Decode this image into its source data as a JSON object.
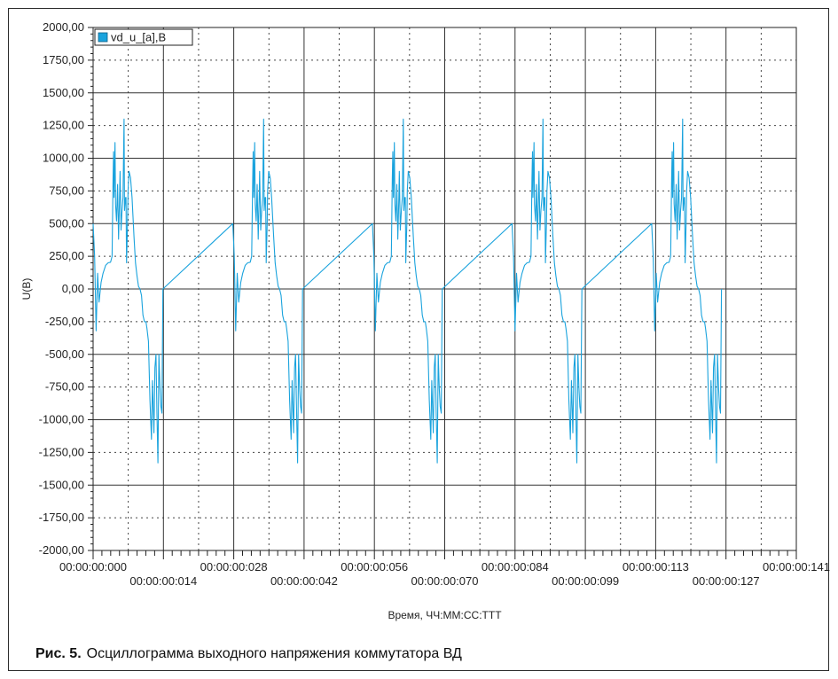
{
  "chart_data": {
    "type": "line",
    "legend": {
      "label": "vd_u_[a],B",
      "position": "top-left"
    },
    "series": [
      {
        "name": "vd_u_[a],B",
        "color": "#1aa3dd",
        "x": [
          0.0,
          0.0003,
          0.0006,
          0.0009,
          0.0012,
          0.0016,
          0.002,
          0.0025,
          0.003,
          0.0035,
          0.0038,
          0.004,
          0.0041,
          0.0042,
          0.0044,
          0.0045,
          0.0047,
          0.0049,
          0.0051,
          0.0053,
          0.0054,
          0.0056,
          0.0058,
          0.006,
          0.0062,
          0.0063,
          0.0065,
          0.0066,
          0.0067,
          0.0069,
          0.007,
          0.0072,
          0.0075,
          0.0078,
          0.0082,
          0.0085,
          0.0088,
          0.0091,
          0.0094,
          0.0097,
          0.01,
          0.0103,
          0.0106,
          0.0108,
          0.0111,
          0.0114,
          0.0117,
          0.0119,
          0.0122,
          0.0124,
          0.0126,
          0.0128,
          0.013,
          0.0132,
          0.0134,
          0.0136,
          0.0138,
          0.014
        ],
        "y": [
          500,
          250,
          -320,
          120,
          -100,
          50,
          120,
          180,
          200,
          205,
          250,
          850,
          1050,
          700,
          1120,
          650,
          520,
          800,
          380,
          700,
          900,
          450,
          600,
          700,
          1300,
          600,
          700,
          700,
          200,
          500,
          750,
          900,
          850,
          700,
          400,
          200,
          100,
          20,
          0,
          -50,
          -200,
          -250,
          -250,
          -300,
          -400,
          -850,
          -1150,
          -700,
          -1100,
          -600,
          -500,
          -950,
          -1330,
          -500,
          -750,
          -900,
          -950,
          0
        ]
      }
    ],
    "xlim": [
      0,
      0.141
    ],
    "ylim": [
      -2000,
      2000
    ],
    "x_tick_labels_upper": [
      "00:00:00:000",
      "00:00:00:028",
      "00:00:00:056",
      "00:00:00:084",
      "00:00:00:113",
      "00:00:00:141"
    ],
    "x_tick_labels_lower": [
      "00:00:00:014",
      "00:00:00:042",
      "00:00:00:070",
      "00:00:00:099",
      "00:00:00:127"
    ],
    "y_tick_values": [
      2000,
      1750,
      1500,
      1250,
      1000,
      750,
      500,
      250,
      0,
      -250,
      -500,
      -750,
      -1000,
      -1250,
      -1500,
      -1750,
      -2000
    ],
    "y_tick_labels": [
      "2000,00",
      "1750,00",
      "1500,00",
      "1250,00",
      "1000,00",
      "750,00",
      "500,00",
      "250,00",
      "0,00",
      "-250,00",
      "-500,00",
      "-750,00",
      "-1000,00",
      "-1250,00",
      "-1500,00",
      "-1750,00",
      "-2000,00"
    ],
    "ylabel": "U(B)",
    "xlabel": "Время, ЧЧ:ММ:СС:ТТТ",
    "grid": true,
    "period": 0.028,
    "periods": 5
  },
  "caption": {
    "prefix": "Рис. 5.",
    "text": "Осциллограмма выходного напряжения коммутатора ВД"
  }
}
